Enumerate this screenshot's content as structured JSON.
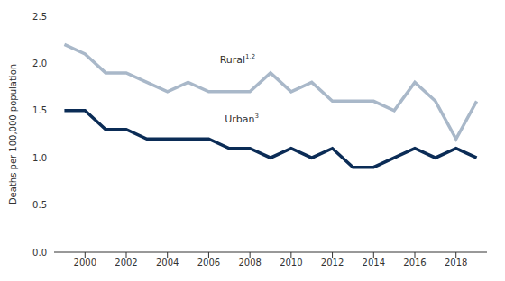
{
  "chart_data": {
    "type": "line",
    "y_label": "Deaths per 100,000 population",
    "x": [
      1999,
      2000,
      2001,
      2002,
      2003,
      2004,
      2005,
      2006,
      2007,
      2008,
      2009,
      2010,
      2011,
      2012,
      2013,
      2014,
      2015,
      2016,
      2017,
      2018,
      2019
    ],
    "series": [
      {
        "name": "Rural",
        "color": "#a9b8c9",
        "values": [
          2.2,
          2.1,
          1.9,
          1.9,
          1.8,
          1.7,
          1.8,
          1.7,
          1.7,
          1.7,
          1.9,
          1.7,
          1.8,
          1.6,
          1.6,
          1.6,
          1.5,
          1.8,
          1.6,
          1.2,
          1.6
        ]
      },
      {
        "name": "Urban",
        "color": "#0b2c56",
        "values": [
          1.5,
          1.5,
          1.3,
          1.3,
          1.2,
          1.2,
          1.2,
          1.2,
          1.1,
          1.1,
          1.0,
          1.1,
          1.0,
          1.1,
          0.9,
          0.9,
          1.0,
          1.1,
          1.0,
          1.1,
          1.0
        ]
      }
    ],
    "annotations": [
      {
        "text": "Rural",
        "superscript": "1,2",
        "x": 2007.4,
        "y": 2.0
      },
      {
        "text": "Urban",
        "superscript": "3",
        "x": 2007.6,
        "y": 1.37
      }
    ],
    "xlim": [
      1998.5,
      2019.5
    ],
    "xticks": [
      2000,
      2002,
      2004,
      2006,
      2008,
      2010,
      2012,
      2014,
      2016,
      2018
    ],
    "ylim": [
      0,
      2.5
    ],
    "yticks": [
      {
        "value": 0,
        "label": "0.0"
      },
      0.5,
      {
        "value": 1,
        "label": "1.0"
      },
      1.5,
      {
        "value": 2,
        "label": "2.0"
      },
      2.5
    ],
    "grid": false,
    "legend": false
  }
}
